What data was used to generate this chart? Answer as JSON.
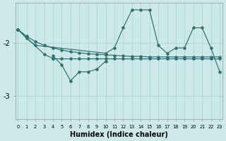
{
  "xlabel": "Humidex (Indice chaleur)",
  "bg_color": "#cce8e8",
  "line_color": "#2d7070",
  "grid_color": "#aad0d0",
  "xlim": [
    -0.3,
    23.3
  ],
  "ylim": [
    -3.45,
    -1.25
  ],
  "yticks": [
    -3,
    -2
  ],
  "xticks": [
    0,
    1,
    2,
    3,
    4,
    5,
    6,
    7,
    8,
    9,
    10,
    11,
    12,
    13,
    14,
    15,
    16,
    17,
    18,
    19,
    20,
    21,
    22,
    23
  ],
  "series1_x": [
    0,
    1,
    2,
    10,
    11,
    12,
    13,
    14,
    15,
    16,
    17,
    18,
    19,
    20,
    21,
    22,
    23
  ],
  "series1_y": [
    -1.75,
    -1.92,
    -2.05,
    -2.2,
    -2.1,
    -1.72,
    -1.38,
    -1.38,
    -1.38,
    -2.05,
    -2.2,
    -2.1,
    -2.1,
    -1.72,
    -1.72,
    -2.1,
    -2.55
  ],
  "series2_x": [
    4,
    5,
    6,
    7,
    8,
    9,
    10
  ],
  "series2_y": [
    -2.25,
    -2.42,
    -2.72,
    -2.55,
    -2.55,
    -2.5,
    -2.35
  ],
  "series3_x": [
    0,
    3,
    4
  ],
  "series3_y": [
    -1.75,
    -2.22,
    -2.3
  ],
  "series4_x": [
    4,
    5,
    6,
    7,
    8,
    9,
    10,
    11,
    12,
    13,
    14,
    15,
    16,
    17,
    18,
    19,
    20,
    21,
    22,
    23
  ],
  "series4_y": [
    -2.3,
    -2.3,
    -2.3,
    -2.3,
    -2.3,
    -2.3,
    -2.3,
    -2.3,
    -2.3,
    -2.3,
    -2.3,
    -2.3,
    -2.3,
    -2.3,
    -2.3,
    -2.3,
    -2.3,
    -2.3,
    -2.3,
    -2.3
  ],
  "series5_x": [
    0,
    1,
    2,
    3,
    4,
    5,
    6,
    7,
    8,
    9,
    10,
    11,
    12,
    13,
    14,
    15,
    16,
    17,
    18,
    19,
    20,
    21,
    22,
    23
  ],
  "series5_y": [
    -1.75,
    -1.88,
    -1.98,
    -2.05,
    -2.1,
    -2.14,
    -2.17,
    -2.19,
    -2.21,
    -2.22,
    -2.23,
    -2.24,
    -2.25,
    -2.26,
    -2.26,
    -2.27,
    -2.27,
    -2.27,
    -2.27,
    -2.27,
    -2.27,
    -2.27,
    -2.27,
    -2.27
  ]
}
